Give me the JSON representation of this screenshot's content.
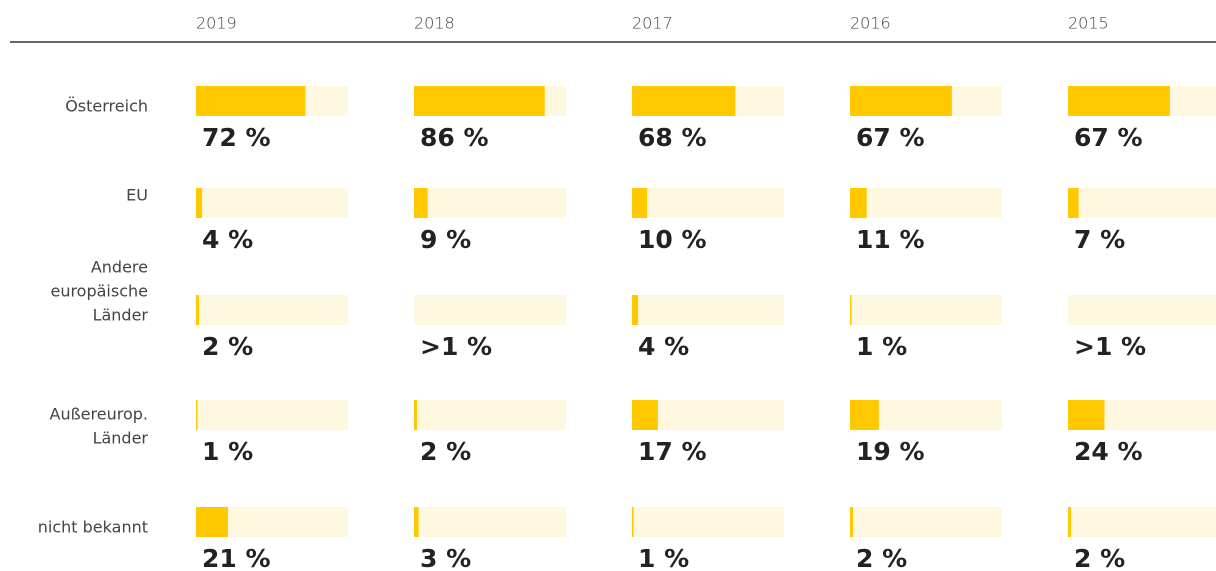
{
  "chart_data": {
    "type": "bar-grid",
    "columns": [
      "2019",
      "2018",
      "2017",
      "2016",
      "2015"
    ],
    "xlim": [
      0,
      100
    ],
    "color": "#ffc800",
    "track_color": "#fff8e0",
    "rows": [
      {
        "label": [
          "Österreich"
        ],
        "values": [
          72,
          86,
          68,
          67,
          67
        ],
        "value_labels": [
          "72 %",
          "86 %",
          "68 %",
          "67 %",
          "67 %"
        ]
      },
      {
        "label": [
          "EU"
        ],
        "values": [
          4,
          9,
          10,
          11,
          7
        ],
        "value_labels": [
          "4 %",
          "9 %",
          "10 %",
          "11 %",
          "7 %"
        ]
      },
      {
        "label": [
          "Andere",
          "europäische",
          "Länder"
        ],
        "values": [
          2,
          null,
          4,
          1,
          null
        ],
        "value_labels": [
          "2 %",
          ">1 %",
          "4 %",
          "1 %",
          ">1 %"
        ]
      },
      {
        "label": [
          "Außereurop.",
          "Länder"
        ],
        "values": [
          1,
          2,
          17,
          19,
          24
        ],
        "value_labels": [
          "1 %",
          "2 %",
          "17 %",
          "19 %",
          "24 %"
        ]
      },
      {
        "label": [
          "nicht bekannt"
        ],
        "values": [
          21,
          3,
          1,
          2,
          2
        ],
        "value_labels": [
          "21 %",
          "3 %",
          "1 %",
          "2 %",
          "2 %"
        ]
      }
    ]
  }
}
